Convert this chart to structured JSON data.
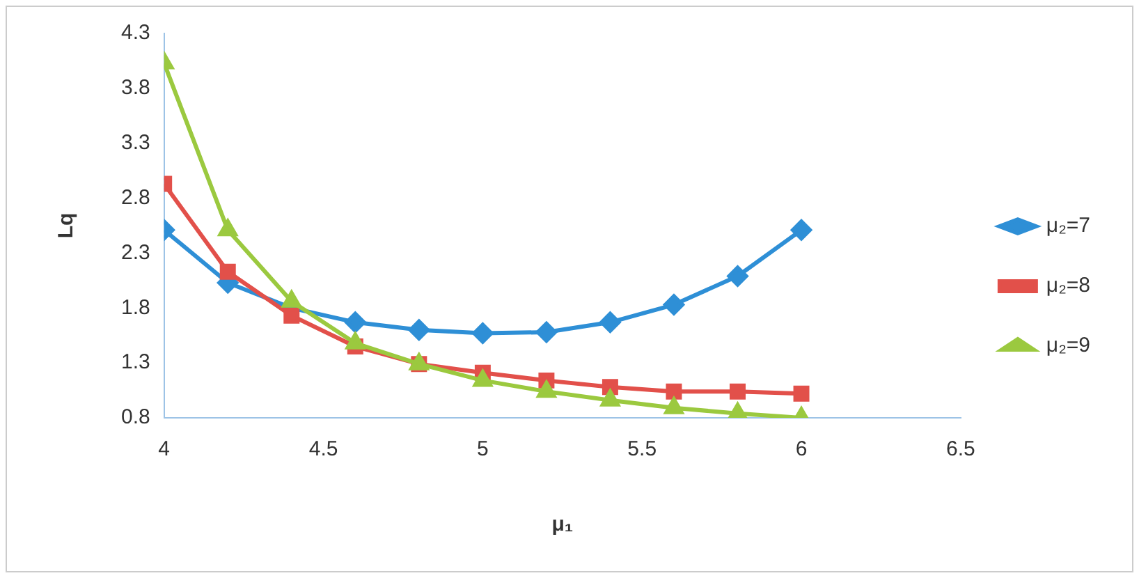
{
  "chart_data": {
    "type": "line",
    "xlabel": "μ₁",
    "ylabel": "Lq",
    "x": [
      4,
      4.2,
      4.4,
      4.6,
      4.8,
      5,
      5.2,
      5.4,
      5.6,
      5.8,
      6
    ],
    "series": [
      {
        "name": "μ₂=7",
        "color": "#2e8fd6",
        "marker": "diamond",
        "values": [
          2.51,
          2.03,
          1.8,
          1.67,
          1.6,
          1.57,
          1.58,
          1.67,
          1.83,
          2.09,
          2.51
        ]
      },
      {
        "name": "μ₂=8",
        "color": "#e2504a",
        "marker": "square",
        "values": [
          2.93,
          2.13,
          1.73,
          1.45,
          1.29,
          1.21,
          1.14,
          1.08,
          1.04,
          1.04,
          1.02
        ]
      },
      {
        "name": "μ₂=9",
        "color": "#9bc93f",
        "marker": "triangle",
        "values": [
          4.03,
          2.51,
          1.86,
          1.48,
          1.29,
          1.14,
          1.04,
          0.96,
          0.89,
          0.84,
          0.8
        ]
      }
    ],
    "xlim": [
      4,
      6.5
    ],
    "xticks": [
      4,
      4.5,
      5,
      5.5,
      6,
      6.5
    ],
    "ylim": [
      0.8,
      4.3
    ],
    "yticks": [
      0.8,
      1.3,
      1.8,
      2.3,
      2.8,
      3.3,
      3.8,
      4.3
    ],
    "grid": false,
    "legend": "right"
  }
}
